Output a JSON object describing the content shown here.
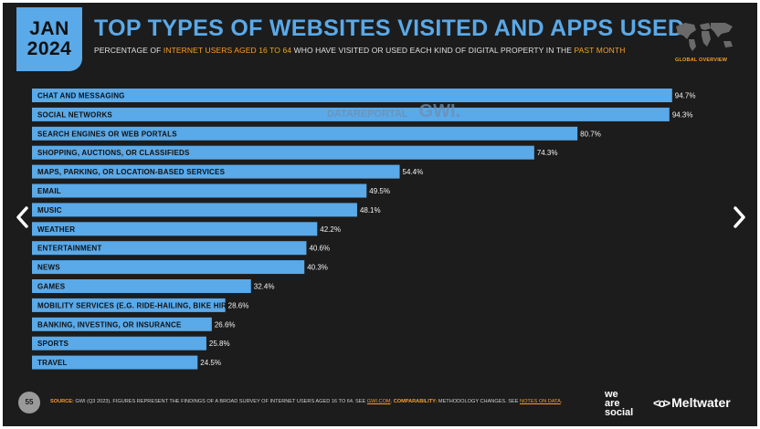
{
  "header": {
    "month": "JAN",
    "year": "2024",
    "title": "TOP TYPES OF WEBSITES VISITED AND APPS USED",
    "subtitle_parts": [
      "PERCENTAGE OF ",
      "INTERNET USERS AGED 16 TO 64",
      " WHO HAVE VISITED OR USED EACH KIND OF DIGITAL PROPERTY IN THE ",
      "PAST MONTH"
    ],
    "scope": "GLOBAL OVERVIEW"
  },
  "watermark": {
    "left": "DATAREPORTAL",
    "right": "GWI."
  },
  "chart_data": {
    "type": "bar",
    "orientation": "horizontal",
    "categories": [
      "CHAT AND MESSAGING",
      "SOCIAL NETWORKS",
      "SEARCH ENGINES OR WEB PORTALS",
      "SHOPPING, AUCTIONS, OR CLASSIFIEDS",
      "MAPS, PARKING, OR LOCATION-BASED SERVICES",
      "EMAIL",
      "MUSIC",
      "WEATHER",
      "ENTERTAINMENT",
      "NEWS",
      "GAMES",
      "MOBILITY SERVICES (E.G. RIDE-HAILING, BIKE HIRE)",
      "BANKING, INVESTING, OR INSURANCE",
      "SPORTS",
      "TRAVEL"
    ],
    "values": [
      94.7,
      94.3,
      80.7,
      74.3,
      54.4,
      49.5,
      48.1,
      42.2,
      40.6,
      40.3,
      32.4,
      28.6,
      26.6,
      25.8,
      24.5
    ],
    "value_labels": [
      "94.7%",
      "94.3%",
      "80.7%",
      "74.3%",
      "54.4%",
      "49.5%",
      "48.1%",
      "42.2%",
      "40.6%",
      "40.3%",
      "32.4%",
      "28.6%",
      "26.6%",
      "25.8%",
      "24.5%"
    ],
    "xlim": [
      0,
      100
    ],
    "grid": false,
    "bar_color": "#5aa9e8"
  },
  "footer": {
    "page_number": "55",
    "source_label": "SOURCE:",
    "source_text": " GWI (Q3 2023). FIGURES REPRESENT THE FINDINGS OF A BROAD SURVEY OF INTERNET USERS AGED 16 TO 64. SEE ",
    "source_link": "GWI.COM",
    "comparability_label": " COMPARABILITY:",
    "comparability_text": " METHODOLOGY CHANGES. SEE ",
    "notes_link": "NOTES ON DATA",
    "end": ".",
    "brand_1": [
      "we",
      "are",
      "social"
    ],
    "brand_2": "Meltwater"
  },
  "colors": {
    "background": "#1c1c1c",
    "accent": "#5aa9e8",
    "highlight": "#f59f2c"
  }
}
